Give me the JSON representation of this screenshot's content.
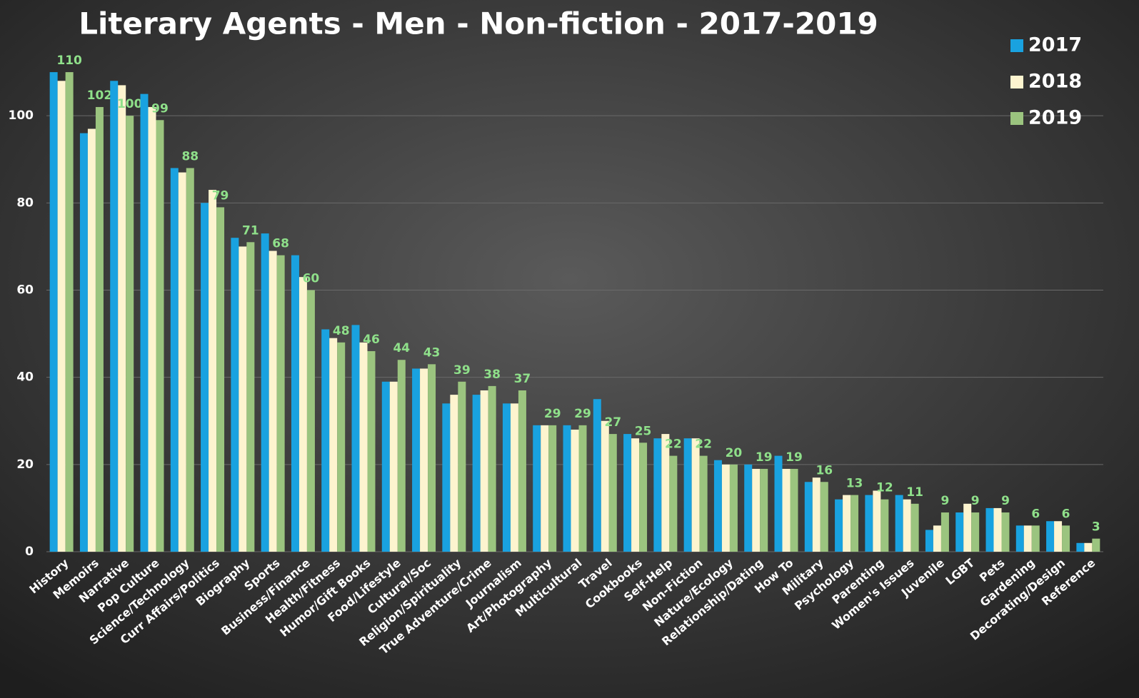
{
  "chart_data": {
    "type": "bar",
    "title": "Literary Agents - Men - Non-fiction - 2017-2019",
    "categories": [
      "History",
      "Memoirs",
      "Narrative",
      "Pop Culture",
      "Science/Technology",
      "Curr Affairs/Politics",
      "Biography",
      "Sports",
      "Business/Finance",
      "Health/Fitness",
      "Humor/Gift Books",
      "Food/Lifestyle",
      "Cultural/Soc",
      "Religion/Spirituality",
      "True Adventure/Crime",
      "Journalism",
      "Art/Photography",
      "Multicultural",
      "Travel",
      "Cookbooks",
      "Self-Help",
      "Non-Fiction",
      "Nature/Ecology",
      "Relationship/Dating",
      "How To",
      "Military",
      "Psychology",
      "Parenting",
      "Women's Issues",
      "Juvenile",
      "LGBT",
      "Pets",
      "Gardening",
      "Decorating/Design",
      "Reference"
    ],
    "series": [
      {
        "name": "2017",
        "color": "#19a2e0",
        "values": [
          110,
          96,
          108,
          105,
          88,
          80,
          72,
          73,
          68,
          51,
          52,
          39,
          42,
          34,
          36,
          34,
          29,
          29,
          35,
          27,
          26,
          26,
          21,
          20,
          22,
          16,
          12,
          13,
          13,
          5,
          9,
          10,
          6,
          7,
          2
        ]
      },
      {
        "name": "2018",
        "color": "#fdf4cf",
        "values": [
          108,
          97,
          107,
          102,
          87,
          83,
          70,
          69,
          63,
          49,
          48,
          39,
          42,
          36,
          37,
          34,
          29,
          28,
          30,
          26,
          27,
          26,
          20,
          19,
          19,
          17,
          13,
          14,
          12,
          6,
          11,
          10,
          6,
          7,
          2
        ]
      },
      {
        "name": "2019",
        "color": "#9bc47f",
        "values": [
          110,
          102,
          100,
          99,
          88,
          79,
          71,
          68,
          60,
          48,
          46,
          44,
          43,
          39,
          38,
          37,
          29,
          29,
          27,
          25,
          22,
          22,
          20,
          19,
          19,
          16,
          13,
          12,
          11,
          9,
          9,
          9,
          6,
          6,
          3
        ]
      }
    ],
    "label_series": 2,
    "label_color": "#8fe08a",
    "ylim": [
      0,
      120
    ],
    "yticks": [
      0,
      20,
      40,
      60,
      80,
      100
    ],
    "grid": true,
    "legend": "top-right"
  }
}
